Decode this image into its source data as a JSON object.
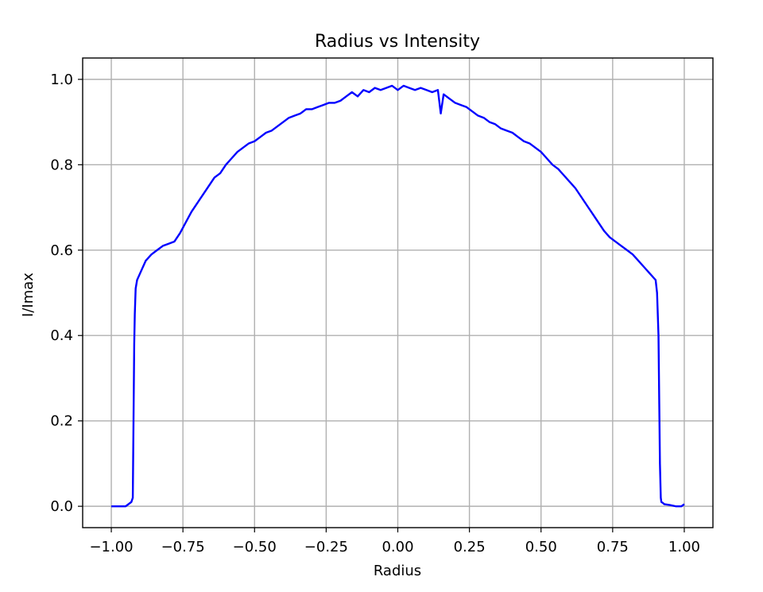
{
  "chart_data": {
    "type": "line",
    "title": "Radius vs Intensity",
    "xlabel": "Radius",
    "ylabel": "I/Imax",
    "xlim": [
      -1.1,
      1.1
    ],
    "ylim": [
      -0.05,
      1.05
    ],
    "xticks": [
      -1.0,
      -0.75,
      -0.5,
      -0.25,
      0.0,
      0.25,
      0.5,
      0.75,
      1.0
    ],
    "xtick_labels": [
      "−1.00",
      "−0.75",
      "−0.50",
      "−0.25",
      "0.00",
      "0.25",
      "0.50",
      "0.75",
      "1.00"
    ],
    "yticks": [
      0.0,
      0.2,
      0.4,
      0.6,
      0.8,
      1.0
    ],
    "ytick_labels": [
      "0.0",
      "0.2",
      "0.4",
      "0.6",
      "0.8",
      "1.0"
    ],
    "grid": true,
    "series": [
      {
        "color": "#0000ff",
        "x": [
          -1.0,
          -0.95,
          -0.93,
          -0.925,
          -0.92,
          -0.918,
          -0.915,
          -0.91,
          -0.9,
          -0.88,
          -0.86,
          -0.84,
          -0.82,
          -0.8,
          -0.78,
          -0.76,
          -0.74,
          -0.72,
          -0.7,
          -0.68,
          -0.66,
          -0.64,
          -0.62,
          -0.6,
          -0.58,
          -0.56,
          -0.54,
          -0.52,
          -0.5,
          -0.48,
          -0.46,
          -0.44,
          -0.42,
          -0.4,
          -0.38,
          -0.36,
          -0.34,
          -0.32,
          -0.3,
          -0.28,
          -0.26,
          -0.24,
          -0.22,
          -0.2,
          -0.18,
          -0.16,
          -0.14,
          -0.12,
          -0.1,
          -0.08,
          -0.06,
          -0.04,
          -0.02,
          0.0,
          0.02,
          0.04,
          0.06,
          0.08,
          0.1,
          0.12,
          0.14,
          0.15,
          0.16,
          0.18,
          0.2,
          0.22,
          0.24,
          0.26,
          0.28,
          0.3,
          0.32,
          0.34,
          0.36,
          0.38,
          0.4,
          0.42,
          0.44,
          0.46,
          0.48,
          0.5,
          0.52,
          0.54,
          0.56,
          0.58,
          0.6,
          0.62,
          0.64,
          0.66,
          0.68,
          0.7,
          0.72,
          0.74,
          0.76,
          0.78,
          0.8,
          0.82,
          0.84,
          0.86,
          0.88,
          0.9,
          0.905,
          0.91,
          0.915,
          0.918,
          0.92,
          0.925,
          0.93,
          0.95,
          0.97,
          0.99,
          1.0
        ],
        "y": [
          0.0,
          0.0,
          0.01,
          0.02,
          0.38,
          0.45,
          0.51,
          0.53,
          0.545,
          0.575,
          0.59,
          0.6,
          0.61,
          0.615,
          0.62,
          0.64,
          0.665,
          0.69,
          0.71,
          0.73,
          0.75,
          0.77,
          0.78,
          0.8,
          0.815,
          0.83,
          0.84,
          0.85,
          0.855,
          0.865,
          0.875,
          0.88,
          0.89,
          0.9,
          0.91,
          0.915,
          0.92,
          0.93,
          0.93,
          0.935,
          0.94,
          0.945,
          0.945,
          0.95,
          0.96,
          0.97,
          0.96,
          0.975,
          0.97,
          0.98,
          0.975,
          0.98,
          0.985,
          0.975,
          0.985,
          0.98,
          0.975,
          0.98,
          0.975,
          0.97,
          0.975,
          0.92,
          0.965,
          0.955,
          0.945,
          0.94,
          0.935,
          0.925,
          0.915,
          0.91,
          0.9,
          0.895,
          0.885,
          0.88,
          0.875,
          0.865,
          0.855,
          0.85,
          0.84,
          0.83,
          0.815,
          0.8,
          0.79,
          0.775,
          0.76,
          0.745,
          0.725,
          0.705,
          0.685,
          0.665,
          0.645,
          0.63,
          0.62,
          0.61,
          0.6,
          0.59,
          0.575,
          0.56,
          0.545,
          0.53,
          0.5,
          0.4,
          0.1,
          0.02,
          0.01,
          0.008,
          0.005,
          0.003,
          0.0,
          0.0,
          0.005
        ]
      }
    ]
  }
}
